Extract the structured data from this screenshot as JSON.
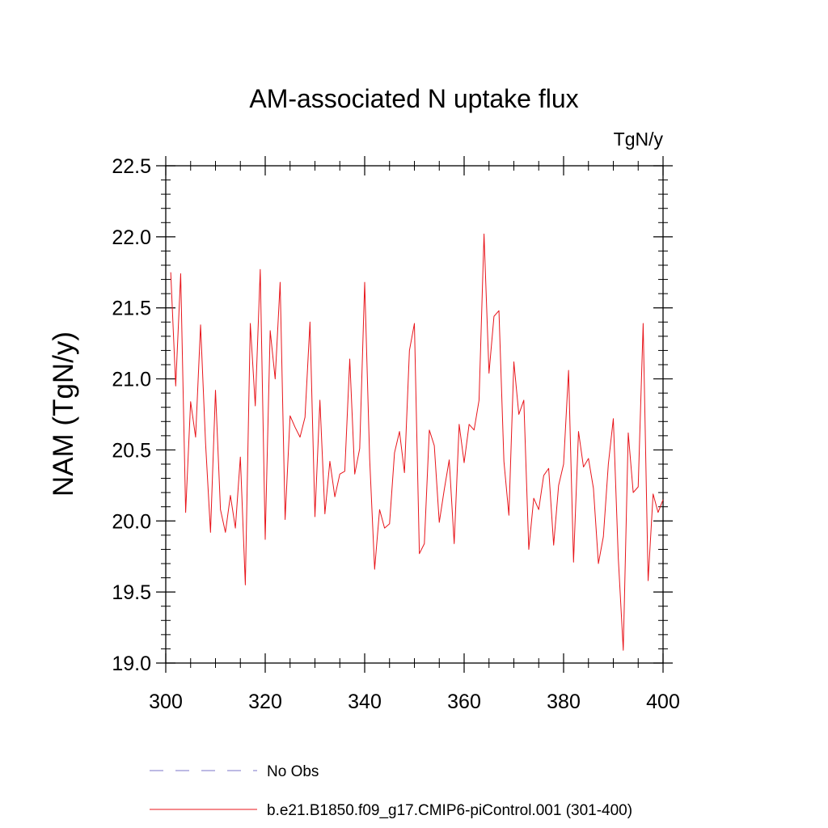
{
  "chart_data": {
    "type": "line",
    "title": "AM-associated N uptake flux",
    "units": "TgN/y",
    "xlabel": "",
    "ylabel": "NAM  (TgN/y)",
    "xlim": [
      300,
      400
    ],
    "ylim": [
      19.0,
      22.5
    ],
    "x_ticks": [
      300,
      320,
      340,
      360,
      380,
      400
    ],
    "x_tick_labels": [
      "300",
      "320",
      "340",
      "360",
      "380",
      "400"
    ],
    "y_ticks": [
      19.0,
      19.5,
      20.0,
      20.5,
      21.0,
      21.5,
      22.0,
      22.5
    ],
    "y_tick_labels": [
      "19.0",
      "19.5",
      "20.0",
      "20.5",
      "21.0",
      "21.5",
      "22.0",
      "22.5"
    ],
    "grid": false,
    "legend": [
      {
        "label": "No Obs",
        "color": "#7b74c8",
        "style": "dashed"
      },
      {
        "label": "b.e21.B1850.f09_g17.CMIP6-piControl.001 (301-400)",
        "color": "#e8151b",
        "style": "solid"
      }
    ],
    "series": [
      {
        "name": "b.e21.B1850.f09_g17.CMIP6-piControl.001 (301-400)",
        "color": "#e8151b",
        "x": [
          301,
          302,
          303,
          304,
          305,
          306,
          307,
          308,
          309,
          310,
          311,
          312,
          313,
          314,
          315,
          316,
          317,
          318,
          319,
          320,
          321,
          322,
          323,
          324,
          325,
          326,
          327,
          328,
          329,
          330,
          331,
          332,
          333,
          334,
          335,
          336,
          337,
          338,
          339,
          340,
          341,
          342,
          343,
          344,
          345,
          346,
          347,
          348,
          349,
          350,
          351,
          352,
          353,
          354,
          355,
          356,
          357,
          358,
          359,
          360,
          361,
          362,
          363,
          364,
          365,
          366,
          367,
          368,
          369,
          370,
          371,
          372,
          373,
          374,
          375,
          376,
          377,
          378,
          379,
          380,
          381,
          382,
          383,
          384,
          385,
          386,
          387,
          388,
          389,
          390,
          391,
          392,
          393,
          394,
          395,
          396,
          397,
          398,
          399,
          400
        ],
        "values": [
          21.75,
          20.95,
          21.74,
          20.06,
          20.84,
          20.59,
          21.38,
          20.55,
          19.92,
          20.92,
          20.08,
          19.92,
          20.18,
          19.95,
          20.45,
          19.55,
          21.39,
          20.81,
          21.77,
          19.87,
          21.34,
          21.0,
          21.68,
          20.01,
          20.74,
          20.66,
          20.59,
          20.73,
          21.4,
          20.03,
          20.85,
          20.05,
          20.42,
          20.17,
          20.33,
          20.35,
          21.14,
          20.33,
          20.51,
          21.68,
          20.44,
          19.66,
          20.08,
          19.95,
          19.98,
          20.48,
          20.63,
          20.34,
          21.2,
          21.39,
          19.77,
          19.84,
          20.64,
          20.53,
          19.99,
          20.22,
          20.43,
          19.84,
          20.68,
          20.41,
          20.68,
          20.64,
          20.85,
          22.02,
          21.04,
          21.44,
          21.48,
          20.42,
          20.04,
          21.12,
          20.75,
          20.85,
          19.8,
          20.16,
          20.08,
          20.32,
          20.37,
          19.83,
          20.25,
          20.4,
          21.06,
          19.71,
          20.63,
          20.38,
          20.44,
          20.23,
          19.7,
          19.89,
          20.4,
          20.72,
          19.74,
          19.09,
          20.62,
          20.2,
          20.24,
          21.39,
          19.58,
          20.19,
          20.06,
          20.15
        ]
      }
    ]
  }
}
